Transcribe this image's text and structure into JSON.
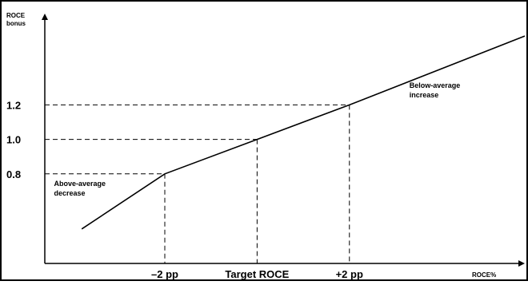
{
  "chart_data": {
    "type": "line",
    "y_axis_title": [
      "ROCE",
      "bonus"
    ],
    "x_axis_title": "ROCE%",
    "yticks": [
      {
        "value": 1.2,
        "label": "1.2"
      },
      {
        "value": 1.0,
        "label": "1.0"
      },
      {
        "value": 0.8,
        "label": "0.8"
      }
    ],
    "xticks": [
      {
        "value": -2,
        "label": "–2 pp"
      },
      {
        "value": 0,
        "label": "Target ROCE"
      },
      {
        "value": 2,
        "label": "+2 pp"
      }
    ],
    "xlim": [
      -4.6,
      5.8
    ],
    "ylim": [
      0.28,
      1.73
    ],
    "series": [
      {
        "x": [
          -3.8,
          -2,
          0,
          2,
          5.8
        ],
        "y": [
          0.48,
          0.8,
          1.0,
          1.2,
          1.6
        ]
      }
    ],
    "annotations": [
      {
        "text_lines": [
          "Above-average",
          "decrease"
        ],
        "x": -4.4,
        "y": 0.73
      },
      {
        "text_lines": [
          "Below-average",
          "increase"
        ],
        "x": 3.3,
        "y": 1.3
      }
    ],
    "grid": "dashed guides at tick values",
    "colors": {
      "line": "#000000",
      "guides": "#000000",
      "background": "#ffffff"
    }
  }
}
